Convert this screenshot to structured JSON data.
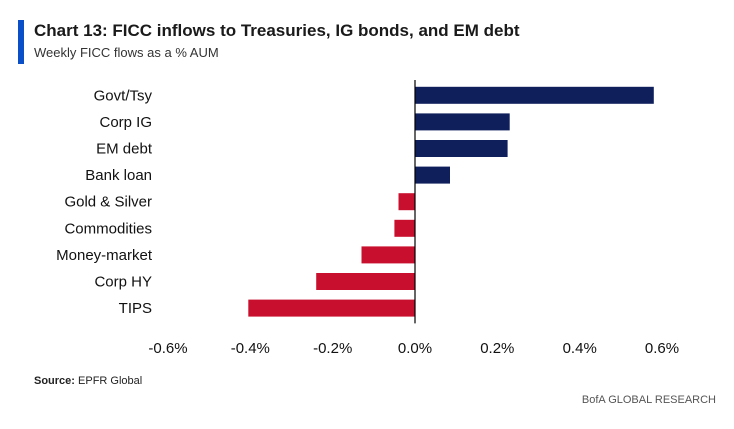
{
  "header": {
    "title": "Chart 13: FICC inflows to Treasuries, IG bonds, and EM debt",
    "subtitle": "Weekly FICC flows as a % AUM"
  },
  "footer": {
    "source_label": "Source:",
    "source_value": " EPFR Global",
    "brand": "BofA GLOBAL RESEARCH"
  },
  "colors": {
    "positive": "#0f1f5c",
    "negative": "#c8102e",
    "title_bar": "#0b4fc8",
    "axis": "#000000"
  },
  "chart_data": {
    "type": "bar",
    "orientation": "horizontal",
    "title": "Chart 13: FICC inflows to Treasuries, IG bonds, and EM debt",
    "subtitle": "Weekly FICC flows as a % AUM",
    "categories": [
      "Govt/Tsy",
      "Corp IG",
      "EM debt",
      "Bank loan",
      "Gold & Silver",
      "Commodities",
      "Money-market",
      "Corp HY",
      "TIPS"
    ],
    "values": [
      0.58,
      0.23,
      0.225,
      0.085,
      -0.04,
      -0.05,
      -0.13,
      -0.24,
      -0.405
    ],
    "xlim": [
      -0.6,
      0.6
    ],
    "xticks": [
      -0.6,
      -0.4,
      -0.2,
      0.0,
      0.2,
      0.4,
      0.6
    ],
    "xtick_labels": [
      "-0.6%",
      "-0.4%",
      "-0.2%",
      "0.0%",
      "0.2%",
      "0.4%",
      "0.6%"
    ],
    "xlabel": "",
    "ylabel": "",
    "grid": false,
    "legend": "none"
  }
}
